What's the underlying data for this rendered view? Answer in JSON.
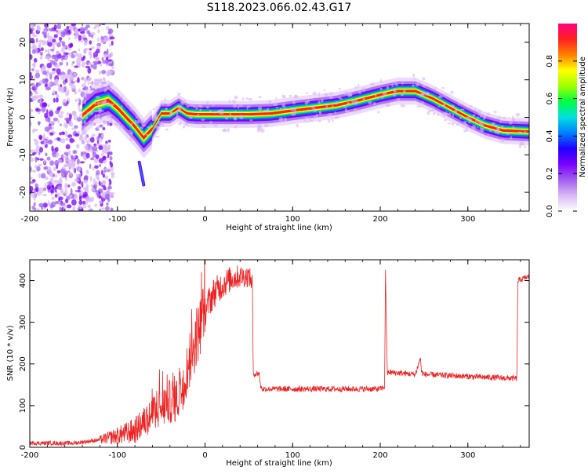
{
  "title": "S118.2023.066.02.43.G17",
  "colors": {
    "snr_line": "#ee2222",
    "axis": "#000000",
    "colormap": [
      "#ffffff",
      "#d9b8f5",
      "#a060f0",
      "#7a00ff",
      "#2000ff",
      "#0080ff",
      "#00e0e0",
      "#00ff40",
      "#a0ff00",
      "#ffff00",
      "#ff8000",
      "#ff2020",
      "#ff0080"
    ]
  },
  "chart_data": [
    {
      "type": "heatmap",
      "xlabel": "Height of straight line (km)",
      "ylabel": "Frequency (Hz)",
      "xlim": [
        -200,
        370
      ],
      "ylim": [
        -25,
        25
      ],
      "xticks": [
        -200,
        -100,
        0,
        100,
        200,
        300
      ],
      "yticks": [
        -20,
        -10,
        0,
        10,
        20
      ],
      "colorbar": {
        "label": "Normalized spectral amplitude",
        "range": [
          0,
          1
        ],
        "ticks": [
          0.0,
          0.2,
          0.4,
          0.6,
          0.8
        ]
      },
      "ridge": {
        "x": [
          -140,
          -125,
          -110,
          -100,
          -90,
          -80,
          -70,
          -60,
          -50,
          -40,
          -30,
          -20,
          -10,
          0,
          25,
          50,
          75,
          100,
          125,
          150,
          175,
          200,
          220,
          240,
          260,
          280,
          300,
          320,
          340,
          370
        ],
        "y": [
          0.5,
          3.5,
          4.5,
          2.5,
          0,
          -2.5,
          -5.5,
          -3,
          1,
          1,
          2.5,
          1,
          0.8,
          0.8,
          0.8,
          0.8,
          1,
          1.8,
          2.5,
          3.2,
          4.5,
          6,
          7,
          7,
          5,
          2.5,
          0,
          -2.2,
          -3.5,
          -3.8
        ],
        "peak_amplitude": 1.0
      },
      "noise_region": {
        "x": [
          -200,
          -120
        ],
        "y": [
          -25,
          25
        ],
        "amplitude": 0.35
      },
      "tail": {
        "x": [
          -75,
          -70
        ],
        "y": [
          -12,
          -18
        ]
      }
    },
    {
      "type": "line",
      "xlabel": "Height of straight line (km)",
      "ylabel": "SNR (10 * v/v)",
      "xlim": [
        -200,
        370
      ],
      "ylim": [
        0,
        450
      ],
      "xticks": [
        -200,
        -100,
        0,
        100,
        200,
        300
      ],
      "yticks": [
        0,
        100,
        200,
        300,
        400
      ],
      "series": [
        {
          "x": [
            -200,
            -150,
            -120,
            -100,
            -80,
            -60,
            -50,
            -40,
            -30,
            -20,
            -10,
            0,
            10,
            20,
            30,
            40,
            50,
            54,
            55,
            62,
            63,
            65,
            70,
            100,
            150,
            200,
            205,
            206,
            207,
            208,
            209,
            210,
            240,
            246,
            247,
            250,
            300,
            355,
            356,
            357,
            370
          ],
          "y": [
            10,
            10,
            18,
            28,
            40,
            80,
            95,
            110,
            120,
            190,
            260,
            330,
            370,
            390,
            405,
            410,
            410,
            395,
            175,
            178,
            150,
            140,
            140,
            140,
            140,
            140,
            145,
            420,
            300,
            175,
            180,
            180,
            175,
            215,
            180,
            175,
            170,
            165,
            165,
            400,
            410
          ]
        }
      ]
    }
  ]
}
